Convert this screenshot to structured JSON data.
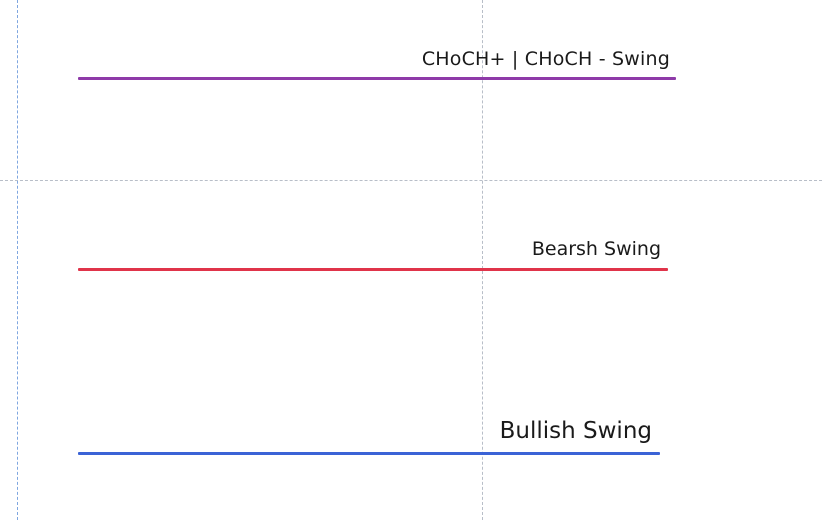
{
  "levels": {
    "choch": {
      "label": "CHoCH+ | CHoCH - Swing",
      "color": "#8e3aa8"
    },
    "bearish": {
      "label": "Bearsh Swing",
      "color": "#e0344a"
    },
    "bullish": {
      "label": "Bullish Swing",
      "color": "#3b63d6"
    }
  },
  "guides": {
    "color": "#b8bec8",
    "accent": "#7fa6e0"
  }
}
